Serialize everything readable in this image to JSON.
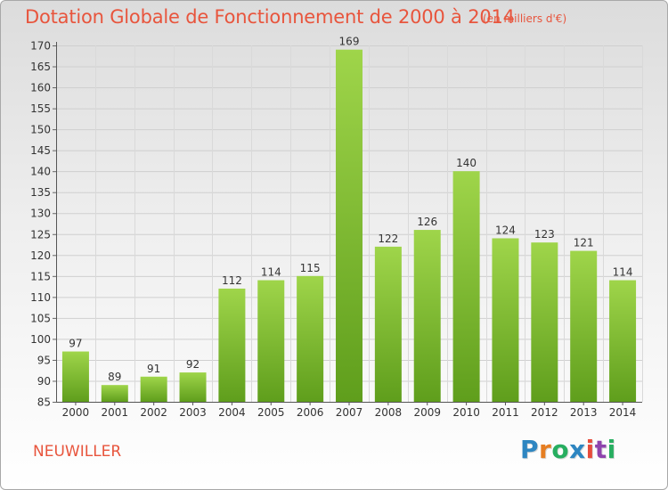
{
  "chart_data": {
    "type": "bar",
    "title": "Dotation Globale de Fonctionnement de 2000 à 2014",
    "subtitle": "(en milliers d'€)",
    "categories": [
      "2000",
      "2001",
      "2002",
      "2003",
      "2004",
      "2005",
      "2006",
      "2007",
      "2008",
      "2009",
      "2010",
      "2011",
      "2012",
      "2013",
      "2014"
    ],
    "values": [
      97,
      89,
      91,
      92,
      112,
      114,
      115,
      169,
      122,
      126,
      140,
      124,
      123,
      121,
      114
    ],
    "ylim": [
      85,
      170
    ],
    "yticks": [
      85,
      90,
      95,
      100,
      105,
      110,
      115,
      120,
      125,
      130,
      135,
      140,
      145,
      150,
      155,
      160,
      165,
      170
    ],
    "grid": true,
    "bar_color": "#8cc63f"
  },
  "commune": "NEUWILLER",
  "logo": {
    "text": "Proxiti",
    "letters": [
      {
        "ch": "P",
        "color": "#2e86c1"
      },
      {
        "ch": "r",
        "color": "#e67e22"
      },
      {
        "ch": "o",
        "color": "#27ae60"
      },
      {
        "ch": "x",
        "color": "#2e86c1"
      },
      {
        "ch": "i",
        "color": "#e74c3c"
      },
      {
        "ch": "t",
        "color": "#8e44ad"
      },
      {
        "ch": "i",
        "color": "#27ae60"
      }
    ]
  }
}
